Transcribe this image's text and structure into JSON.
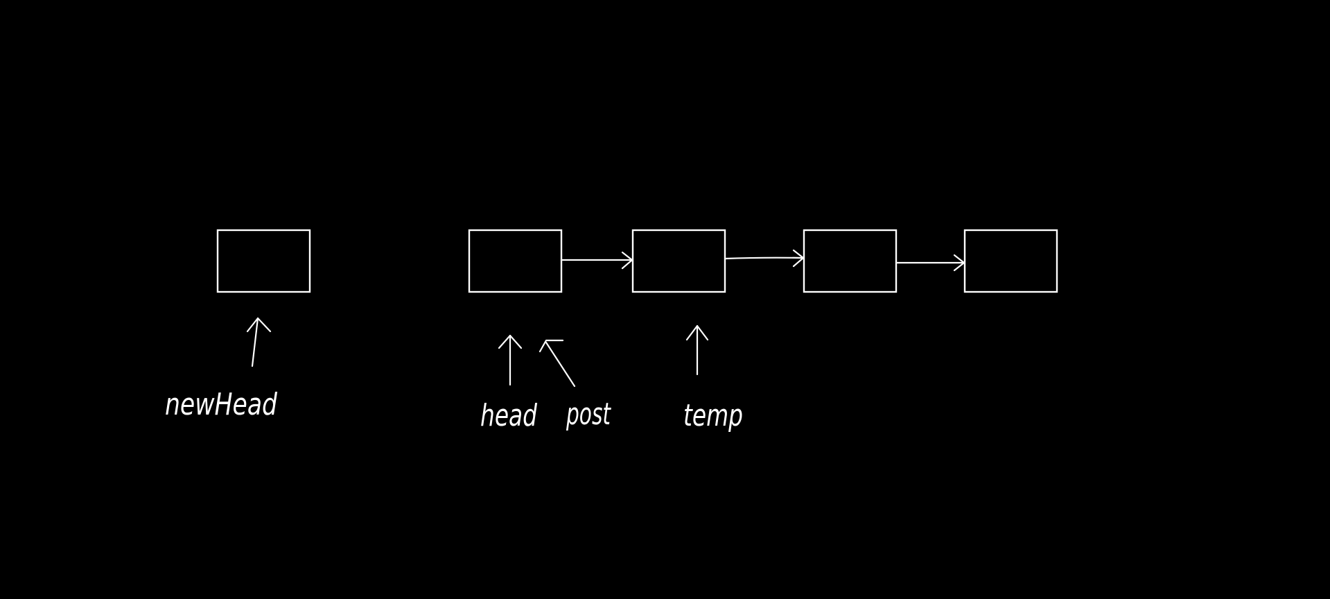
{
  "diagram": {
    "colors": {
      "background": "#000000",
      "stroke": "#ffffff"
    },
    "nodes": [
      "node-new",
      "node-1",
      "node-2",
      "node-3",
      "node-4"
    ],
    "links": [
      {
        "from": "node-1",
        "to": "node-2"
      },
      {
        "from": "node-2",
        "to": "node-3"
      },
      {
        "from": "node-3",
        "to": "node-4"
      }
    ],
    "pointers": [
      {
        "label": "newHead",
        "target": "node-new"
      },
      {
        "label": "head",
        "target": "node-1"
      },
      {
        "label": "post",
        "target": "node-1"
      },
      {
        "label": "temp",
        "target": "node-2"
      }
    ]
  }
}
